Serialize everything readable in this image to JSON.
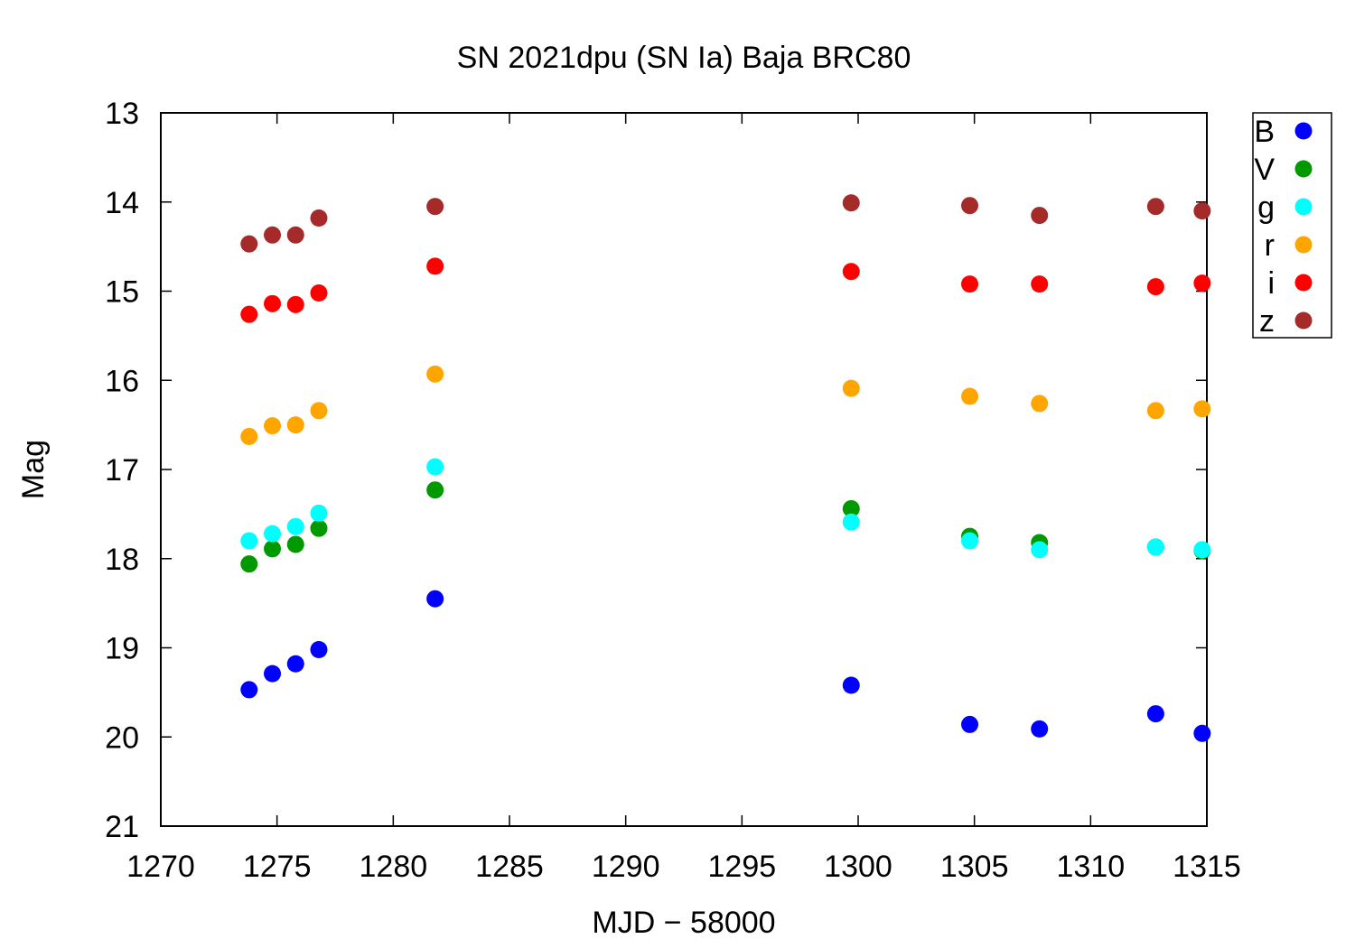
{
  "chart_data": {
    "type": "scatter",
    "title": "SN 2021dpu (SN Ia) Baja BRC80",
    "xlabel": "MJD − 58000",
    "ylabel": "Mag",
    "xlim": [
      1270,
      1315
    ],
    "ylim": [
      13,
      21
    ],
    "y_inverted": true,
    "x_ticks": [
      1270,
      1275,
      1280,
      1285,
      1290,
      1295,
      1300,
      1305,
      1310,
      1315
    ],
    "y_ticks": [
      13,
      14,
      15,
      16,
      17,
      18,
      19,
      20,
      21
    ],
    "grid": false,
    "legend_position": "top-right, outside plot",
    "series": [
      {
        "name": "B",
        "color": "#0000ff",
        "x": [
          1273.8,
          1274.8,
          1275.8,
          1276.8,
          1281.8,
          1299.7,
          1304.8,
          1307.8,
          1312.8,
          1314.8
        ],
        "y": [
          19.47,
          19.29,
          19.18,
          19.02,
          18.45,
          19.42,
          19.86,
          19.91,
          19.74,
          19.96
        ]
      },
      {
        "name": "V",
        "color": "#009900",
        "x": [
          1273.8,
          1274.8,
          1275.8,
          1276.8,
          1281.8,
          1299.7,
          1304.8,
          1307.8,
          1312.8,
          1314.8
        ],
        "y": [
          18.06,
          17.89,
          17.84,
          17.66,
          17.23,
          17.44,
          17.75,
          17.82,
          17.87,
          17.91
        ]
      },
      {
        "name": "g",
        "color": "#00ffff",
        "x": [
          1273.8,
          1274.8,
          1275.8,
          1276.8,
          1281.8,
          1299.7,
          1304.8,
          1307.8,
          1312.8,
          1314.8
        ],
        "y": [
          17.8,
          17.72,
          17.64,
          17.49,
          16.97,
          17.59,
          17.8,
          17.9,
          17.87,
          17.9
        ]
      },
      {
        "name": "r",
        "color": "#ffa500",
        "x": [
          1273.8,
          1274.8,
          1275.8,
          1276.8,
          1281.8,
          1299.7,
          1304.8,
          1307.8,
          1312.8,
          1314.8
        ],
        "y": [
          16.63,
          16.51,
          16.5,
          16.34,
          15.93,
          16.09,
          16.18,
          16.26,
          16.34,
          16.32
        ]
      },
      {
        "name": "i",
        "color": "#ff0000",
        "x": [
          1273.8,
          1274.8,
          1275.8,
          1276.8,
          1281.8,
          1299.7,
          1304.8,
          1307.8,
          1312.8,
          1314.8
        ],
        "y": [
          15.26,
          15.14,
          15.15,
          15.02,
          14.72,
          14.78,
          14.92,
          14.92,
          14.95,
          14.91
        ]
      },
      {
        "name": "z",
        "color": "#a52a2a",
        "x": [
          1273.8,
          1274.8,
          1275.8,
          1276.8,
          1281.8,
          1299.7,
          1304.8,
          1307.8,
          1312.8,
          1314.8
        ],
        "y": [
          14.47,
          14.37,
          14.37,
          14.18,
          14.05,
          14.01,
          14.04,
          14.15,
          14.05,
          14.1
        ]
      }
    ]
  }
}
